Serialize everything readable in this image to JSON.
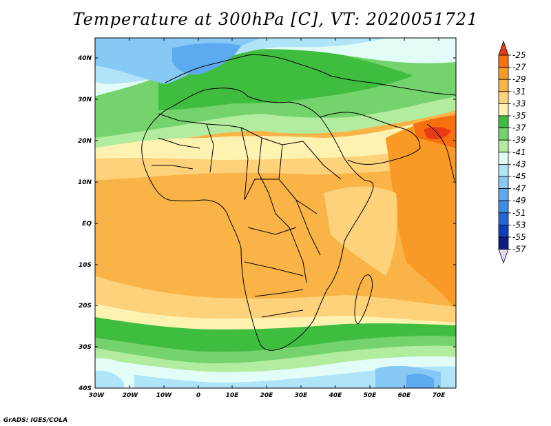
{
  "map": {
    "title": "Temperature at 300hPa [C], VT: 2020051721",
    "credit": "GrADS: IGES/COLA",
    "lat_ticks": [
      "40N",
      "30N",
      "20N",
      "10N",
      "EQ",
      "10S",
      "20S",
      "30S",
      "40S"
    ],
    "lon_ticks": [
      "30W",
      "20W",
      "10W",
      "0",
      "10E",
      "20E",
      "30E",
      "40E",
      "50E",
      "60E",
      "70E"
    ],
    "lat_range": [
      -40,
      45
    ],
    "lon_range": [
      -30,
      75
    ],
    "colorbar": {
      "labels": [
        "-25",
        "-27",
        "-29",
        "-31",
        "-33",
        "-35",
        "-37",
        "-39",
        "-41",
        "-43",
        "-45",
        "-47",
        "-49",
        "-51",
        "-53",
        "-55",
        "-57"
      ],
      "colors": [
        "#e83a16",
        "#f76f0f",
        "#f99a27",
        "#f9b346",
        "#fdd27a",
        "#fdf2b0",
        "#3fbd3f",
        "#74d36d",
        "#b2ec9e",
        "#e2fdf8",
        "#b0e4f8",
        "#86c9f5",
        "#5caaf0",
        "#3d8de8",
        "#2168d6",
        "#0e3fbb",
        "#0b1d85",
        "#e3d8f2"
      ]
    }
  }
}
